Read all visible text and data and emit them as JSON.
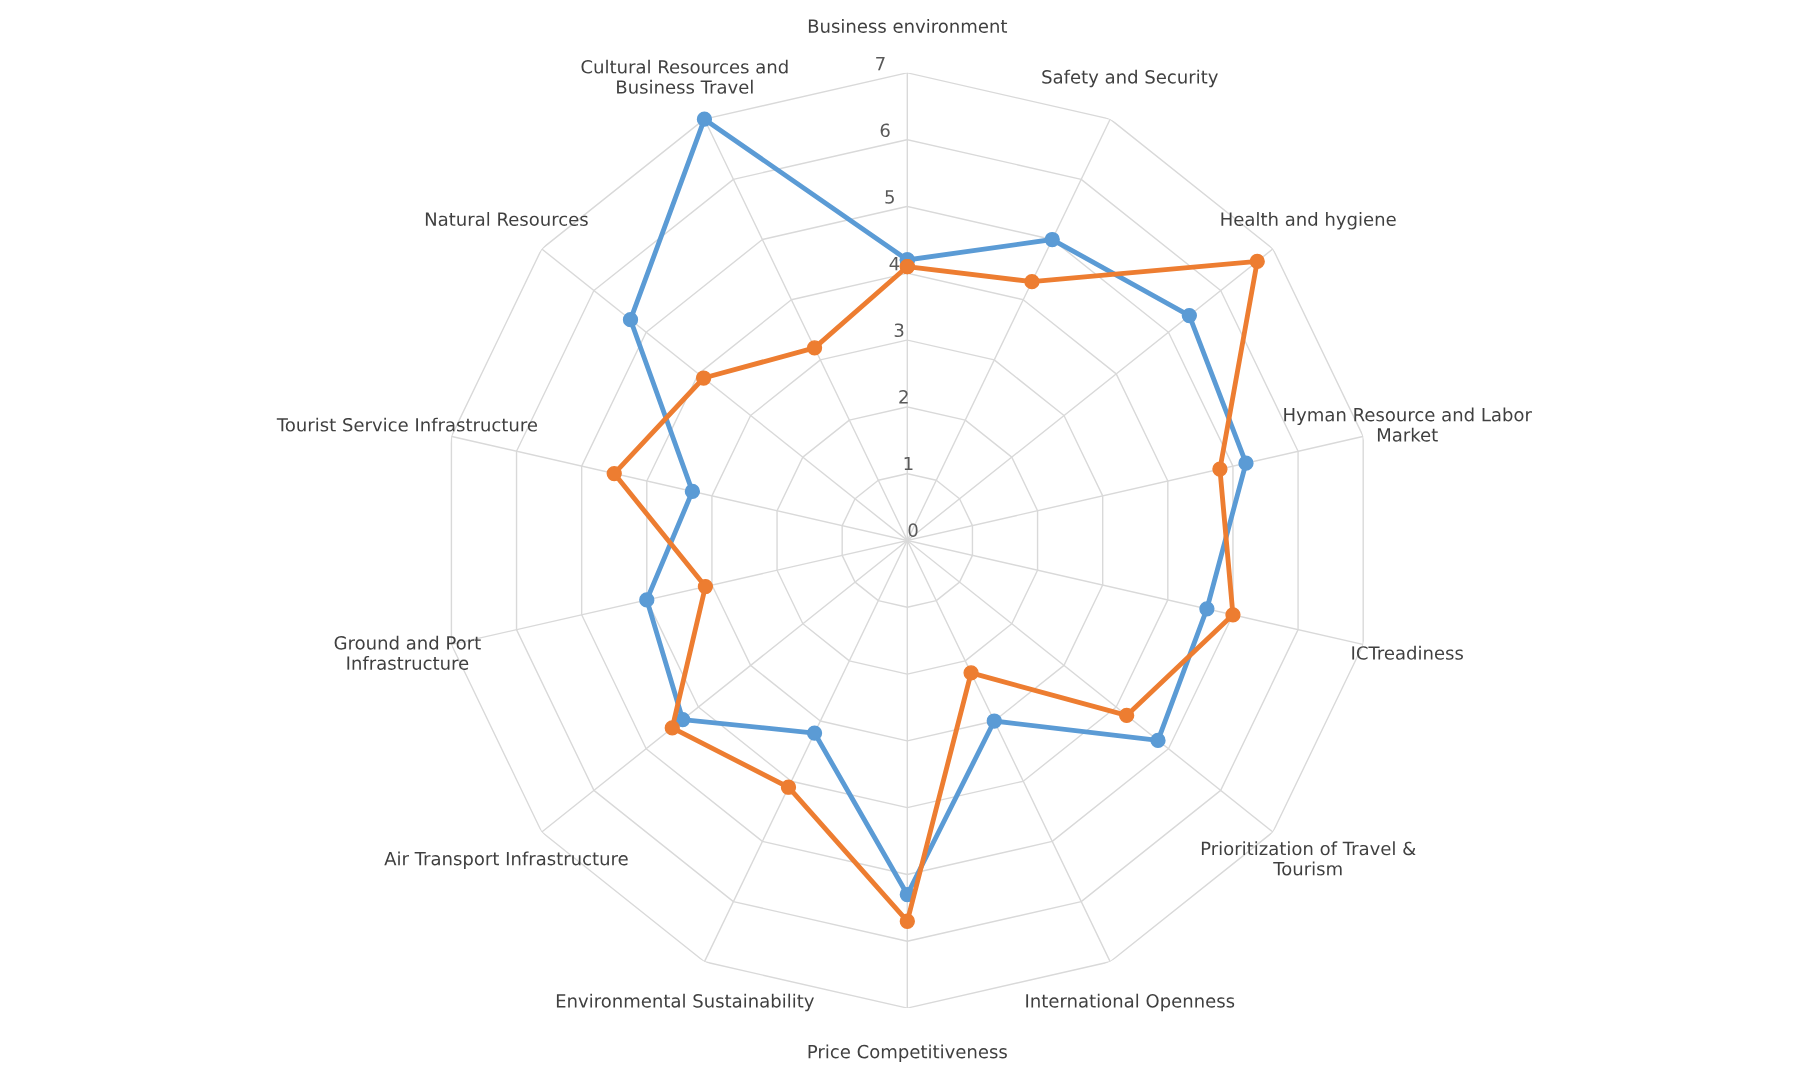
{
  "chart_data": {
    "type": "radar",
    "categories": [
      "Business environment",
      "Safety and Security",
      "Health and hygiene",
      "Hyman Resource and Labor\nMarket",
      "ICTreadiness",
      "Prioritization of Travel &\nTourism",
      "International Openness",
      "Price Competitiveness",
      "Environmental Sustainability",
      "Air Transport Infrastructure",
      "Ground and Port\nInfrastructure",
      "Tourist Service Infrastructure",
      "Natural Resources",
      "Cultural Resources and\nBusiness Travel"
    ],
    "series": [
      {
        "color": "#5b9bd5",
        "values": [
          4.2,
          5.0,
          5.4,
          5.2,
          4.6,
          4.8,
          3.0,
          5.3,
          3.2,
          4.3,
          4.0,
          3.3,
          5.3,
          7.0
        ]
      },
      {
        "color": "#ed7d31",
        "values": [
          4.1,
          4.3,
          6.7,
          4.8,
          5.0,
          4.2,
          2.2,
          5.7,
          4.1,
          4.5,
          3.1,
          4.5,
          3.9,
          3.2
        ]
      }
    ],
    "ylim": [
      0,
      7
    ],
    "yticks": [
      0,
      1,
      2,
      3,
      4,
      5,
      6,
      7
    ],
    "grid": true,
    "marker": "circle",
    "line_style": "solid"
  }
}
